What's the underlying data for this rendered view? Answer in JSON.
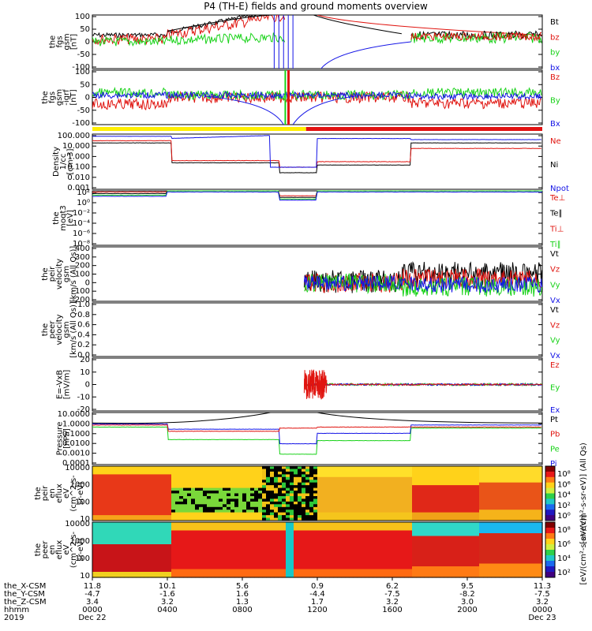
{
  "title": "P4 (TH-E) fields and ground moments overview",
  "colors": {
    "black": "#000000",
    "red": "#e0140f",
    "green": "#18d218",
    "blue": "#1414e6",
    "yellow": "#ffee00",
    "barred": "#e21212"
  },
  "panels": [
    {
      "id": "fgs-gsm",
      "ylabel": [
        "the",
        "fgs",
        "gsm",
        "[nT]"
      ],
      "ticks": [
        "100",
        "50",
        "0",
        "-50",
        "-100"
      ],
      "legend": [
        {
          "t": "Bt",
          "c": "black"
        },
        {
          "t": "bz",
          "c": "red"
        },
        {
          "t": "by",
          "c": "green"
        },
        {
          "t": "bx",
          "c": "blue"
        }
      ]
    },
    {
      "id": "fgs-gsm-igrf",
      "ylabel": [
        "the",
        "fgs",
        "gsm",
        "-igrf",
        "[nT]"
      ],
      "ticks": [
        "100",
        "50",
        "0",
        "-50",
        "-100"
      ],
      "legend": [
        {
          "t": "Bz",
          "c": "red"
        },
        {
          "t": "By",
          "c": "green"
        },
        {
          "t": "Bx",
          "c": "blue"
        }
      ]
    },
    {
      "id": "density",
      "ylabel": [
        "Density",
        "1/cc",
        "[cm-3]"
      ],
      "ticks": [
        "100.000",
        "10.000",
        "1.000",
        "0.100",
        "0.010",
        "0.001"
      ],
      "legend": [
        {
          "t": "Ne",
          "c": "red"
        },
        {
          "t": "Ni",
          "c": "black"
        },
        {
          "t": "Npot",
          "c": "blue"
        }
      ]
    },
    {
      "id": "temperature",
      "ylabel": [
        "the",
        "moqt3",
        "[eV]"
      ],
      "ticks": [
        "10²",
        "10⁰",
        "10⁻²",
        "10⁻⁴",
        "10⁻⁶",
        "10⁻⁸"
      ],
      "legend": [
        {
          "t": "Te⊥",
          "c": "red"
        },
        {
          "t": "Te∥",
          "c": "black"
        },
        {
          "t": "Ti⊥",
          "c": "red"
        },
        {
          "t": "Ti∥",
          "c": "green"
        }
      ]
    },
    {
      "id": "peir-velocity",
      "ylabel": [
        "the",
        "peir",
        "velocity",
        "gsm",
        "[km/s (All Qs)]"
      ],
      "ticks": [
        "400",
        "300",
        "200",
        "100",
        "0",
        "-100",
        "-200"
      ],
      "legend": [
        {
          "t": "Vt",
          "c": "black"
        },
        {
          "t": "Vz",
          "c": "red"
        },
        {
          "t": "Vy",
          "c": "green"
        },
        {
          "t": "Vx",
          "c": "blue"
        }
      ]
    },
    {
      "id": "peer-velocity",
      "ylabel": [
        "the",
        "peer",
        "velocity",
        "gsm",
        "[km/s (All Qs)]"
      ],
      "ticks": [
        "1.0",
        "0.8",
        "0.6",
        "0.4",
        "0.2",
        "0.0"
      ],
      "legend": [
        {
          "t": "Vt",
          "c": "black"
        },
        {
          "t": "Vz",
          "c": "red"
        },
        {
          "t": "Vy",
          "c": "green"
        },
        {
          "t": "Vx",
          "c": "blue"
        }
      ]
    },
    {
      "id": "efield",
      "ylabel": [
        "E=-VxB",
        "[mV/m]"
      ],
      "ticks": [
        "20",
        "10",
        "0",
        "-10",
        "-20"
      ],
      "legend": [
        {
          "t": "Ez",
          "c": "red"
        },
        {
          "t": "Ey",
          "c": "green"
        },
        {
          "t": "Ex",
          "c": "blue"
        }
      ]
    },
    {
      "id": "pressure",
      "ylabel": [
        "Pressure",
        "[nPa]"
      ],
      "ticks": [
        "10.0000",
        "1.0000",
        "0.1000",
        "0.0100",
        "0.0010",
        "0.0001"
      ],
      "legend": [
        {
          "t": "Pt",
          "c": "black"
        },
        {
          "t": "Pb",
          "c": "red"
        },
        {
          "t": "Pe",
          "c": "green"
        },
        {
          "t": "Pi",
          "c": "blue"
        }
      ]
    },
    {
      "id": "peir-eflux",
      "ylabel": [
        "the",
        "peir",
        "en",
        "eflux",
        "eV",
        "(cm^2-s-",
        "sr-eV)"
      ],
      "ticks": [
        "10000",
        "1000",
        "100",
        "10"
      ]
    },
    {
      "id": "peer-eflux",
      "ylabel": [
        "the",
        "peer",
        "en",
        "eflux",
        "eV",
        "(cm^2-s-",
        "sr-eV)"
      ],
      "ticks": [
        "10000",
        "1000",
        "100",
        "10"
      ]
    }
  ],
  "colorbar1": {
    "ticks": [
      "10⁸",
      "10⁶",
      "10⁴",
      "10²",
      "10⁰"
    ],
    "label": "[eV/(cm²-s-sr-eV)] (All Qs)"
  },
  "colorbar2": {
    "ticks": [
      "10⁸",
      "10⁶",
      "10⁴",
      "10²"
    ],
    "label": "[eV/(cm²-s-sr-eV)]"
  },
  "xaxis": {
    "rows": [
      {
        "label": "the_X-CSM",
        "values": [
          "11.8",
          "10.1",
          "5.6",
          "0.9",
          "6.2",
          "9.5",
          "11.3"
        ]
      },
      {
        "label": "the_Y-CSM",
        "values": [
          "-4.7",
          "-1.6",
          "1.6",
          "-4.4",
          "-7.5",
          "-8.2",
          "-7.5"
        ]
      },
      {
        "label": "the_Z-CSM",
        "values": [
          "3.4",
          "3.2",
          "1.3",
          "1.7",
          "3.2",
          "3.0",
          "3.2"
        ]
      },
      {
        "label": "hhmm",
        "values": [
          "0000",
          "0400",
          "0800",
          "1200",
          "1600",
          "2000",
          "0000"
        ]
      },
      {
        "label": "2019",
        "values": [
          "Dec 22",
          "",
          "",
          "",
          "",
          "",
          "Dec 23"
        ]
      }
    ]
  },
  "chart_data": {
    "type": "line",
    "title": "P4 (TH-E) fields and ground moments overview",
    "x_hours": [
      0,
      2,
      4,
      6,
      8,
      9.5,
      10.5,
      11,
      12,
      14,
      16,
      17,
      18,
      20,
      22,
      24
    ],
    "series": [
      {
        "name": "Bt",
        "values": [
          30,
          40,
          70,
          95,
          100,
          100,
          100,
          20,
          80,
          60,
          45,
          35,
          30,
          25,
          25,
          25
        ]
      },
      {
        "name": "bz",
        "values": [
          20,
          15,
          60,
          95,
          100,
          100,
          60,
          -20,
          70,
          40,
          30,
          20,
          15,
          20,
          20,
          15
        ]
      },
      {
        "name": "by",
        "values": [
          0,
          -10,
          5,
          10,
          20,
          20,
          10,
          0,
          10,
          15,
          25,
          20,
          15,
          10,
          5,
          5
        ]
      },
      {
        "name": "bx",
        "values": [
          10,
          5,
          -5,
          -10,
          -20,
          -60,
          -100,
          20,
          -100,
          -70,
          -40,
          -20,
          0,
          5,
          0,
          0
        ]
      }
    ],
    "ylim": [
      -100,
      100
    ]
  }
}
